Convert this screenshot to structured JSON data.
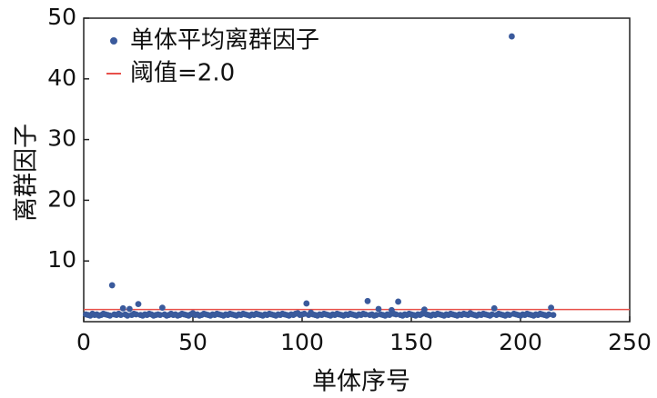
{
  "chart_data": {
    "type": "scatter",
    "x_label": "单体序号",
    "y_label": "离群因子",
    "xlim": [
      0,
      250
    ],
    "ylim": [
      0,
      50
    ],
    "xticks": [
      0,
      50,
      100,
      150,
      200,
      250
    ],
    "yticks": [
      10,
      20,
      30,
      40,
      50
    ],
    "legend": "upper left",
    "threshold": {
      "name": "阈值=2.0",
      "value": 2.0,
      "color": "#e8504a"
    },
    "series": [
      {
        "name": "单体平均离群因子",
        "color": "#3a5a9c",
        "x": [
          1,
          2,
          3,
          4,
          5,
          6,
          7,
          8,
          9,
          10,
          11,
          12,
          13,
          14,
          15,
          16,
          17,
          18,
          19,
          20,
          21,
          22,
          23,
          24,
          25,
          26,
          27,
          28,
          29,
          30,
          31,
          32,
          33,
          34,
          35,
          36,
          37,
          38,
          39,
          40,
          41,
          42,
          43,
          44,
          45,
          46,
          47,
          48,
          49,
          50,
          51,
          52,
          53,
          54,
          55,
          56,
          57,
          58,
          59,
          60,
          61,
          62,
          63,
          64,
          65,
          66,
          67,
          68,
          69,
          70,
          71,
          72,
          73,
          74,
          75,
          76,
          77,
          78,
          79,
          80,
          81,
          82,
          83,
          84,
          85,
          86,
          87,
          88,
          89,
          90,
          91,
          92,
          93,
          94,
          95,
          96,
          97,
          98,
          99,
          100,
          101,
          102,
          103,
          104,
          105,
          106,
          107,
          108,
          109,
          110,
          111,
          112,
          113,
          114,
          115,
          116,
          117,
          118,
          119,
          120,
          121,
          122,
          123,
          124,
          125,
          126,
          127,
          128,
          129,
          130,
          131,
          132,
          133,
          134,
          135,
          136,
          137,
          138,
          139,
          140,
          141,
          142,
          143,
          144,
          145,
          146,
          147,
          148,
          149,
          150,
          151,
          152,
          153,
          154,
          155,
          156,
          157,
          158,
          159,
          160,
          161,
          162,
          163,
          164,
          165,
          166,
          167,
          168,
          169,
          170,
          171,
          172,
          173,
          174,
          175,
          176,
          177,
          178,
          179,
          180,
          181,
          182,
          183,
          184,
          185,
          186,
          187,
          188,
          189,
          190,
          191,
          192,
          193,
          194,
          195,
          196,
          197,
          198,
          199,
          200,
          201,
          202,
          203,
          204,
          205,
          206,
          207,
          208,
          209,
          210,
          211,
          212,
          213,
          214,
          215
        ],
        "values": [
          1.2,
          1.1,
          1.0,
          1.3,
          1.1,
          1.2,
          1.0,
          1.1,
          1.3,
          1.2,
          1.1,
          1.0,
          6.0,
          1.2,
          1.1,
          1.3,
          1.1,
          2.2,
          1.2,
          1.0,
          2.1,
          1.1,
          1.3,
          1.2,
          2.9,
          1.1,
          1.0,
          1.2,
          1.1,
          1.3,
          1.2,
          1.0,
          1.1,
          1.2,
          1.1,
          2.3,
          1.2,
          1.0,
          1.1,
          1.3,
          1.1,
          1.2,
          1.0,
          1.1,
          1.3,
          1.2,
          1.1,
          1.0,
          1.2,
          1.4,
          1.1,
          1.2,
          1.0,
          1.1,
          1.3,
          1.2,
          1.1,
          1.0,
          1.2,
          1.1,
          1.3,
          1.2,
          1.1,
          1.0,
          1.2,
          1.1,
          1.3,
          1.2,
          1.1,
          1.0,
          1.2,
          1.1,
          1.3,
          1.2,
          1.1,
          1.0,
          1.2,
          1.1,
          1.3,
          1.2,
          1.1,
          1.0,
          1.2,
          1.1,
          1.3,
          1.2,
          1.1,
          1.0,
          1.2,
          1.1,
          1.3,
          1.2,
          1.1,
          1.0,
          1.2,
          1.1,
          1.3,
          1.4,
          1.1,
          1.2,
          1.3,
          3.0,
          1.1,
          1.5,
          1.2,
          1.1,
          1.0,
          1.2,
          1.1,
          1.3,
          1.2,
          1.1,
          1.0,
          1.2,
          1.1,
          1.3,
          1.2,
          1.1,
          1.0,
          1.2,
          1.1,
          1.3,
          1.2,
          1.1,
          1.0,
          1.2,
          1.1,
          1.3,
          1.2,
          3.4,
          1.1,
          1.2,
          1.0,
          1.1,
          2.1,
          1.2,
          1.1,
          1.0,
          1.2,
          1.1,
          1.9,
          1.3,
          1.2,
          3.3,
          1.1,
          1.0,
          1.2,
          1.1,
          1.3,
          1.2,
          1.1,
          1.0,
          1.2,
          1.1,
          1.3,
          2.0,
          1.2,
          1.1,
          1.0,
          1.2,
          1.1,
          1.3,
          1.2,
          1.1,
          1.0,
          1.2,
          1.1,
          1.3,
          1.2,
          1.1,
          1.0,
          1.2,
          1.1,
          1.3,
          1.2,
          1.1,
          1.4,
          1.2,
          1.1,
          1.0,
          1.2,
          1.1,
          1.3,
          1.2,
          1.1,
          1.0,
          1.2,
          2.2,
          1.1,
          1.3,
          1.2,
          1.1,
          1.0,
          1.2,
          1.1,
          47.0,
          1.3,
          1.2,
          1.1,
          1.0,
          1.2,
          1.1,
          1.3,
          1.2,
          1.1,
          1.0,
          1.2,
          1.1,
          1.3,
          1.2,
          1.1,
          1.0,
          1.2,
          2.3,
          1.1
        ]
      }
    ]
  }
}
